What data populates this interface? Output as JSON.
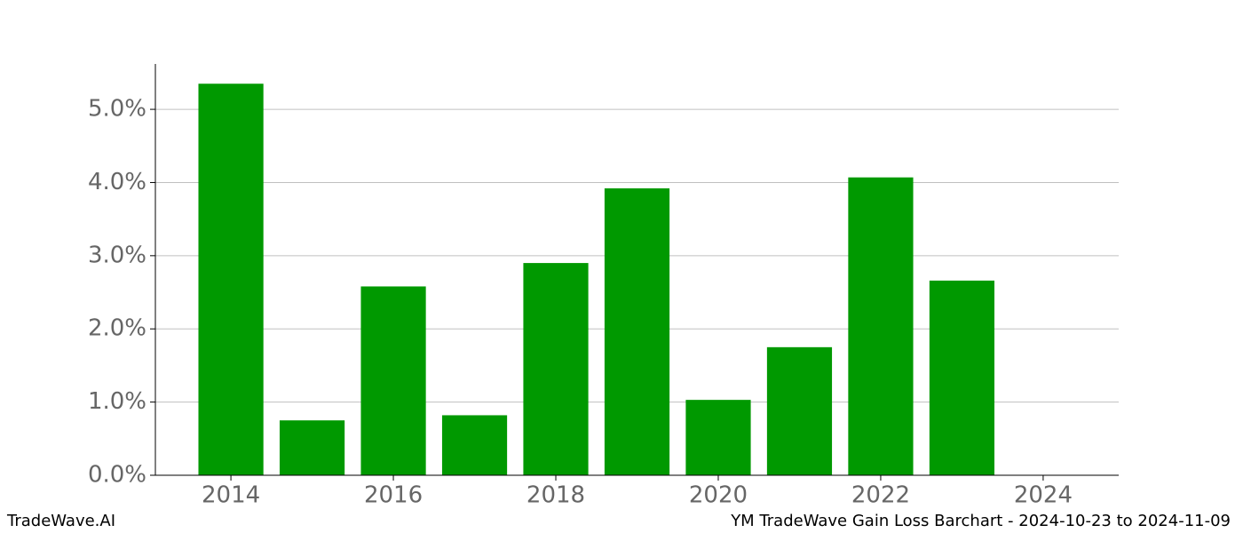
{
  "chart_data": {
    "type": "bar",
    "x": [
      2014,
      2015,
      2016,
      2017,
      2018,
      2019,
      2020,
      2021,
      2022,
      2023
    ],
    "values": [
      5.35,
      0.75,
      2.58,
      0.82,
      2.9,
      3.92,
      1.03,
      1.75,
      4.07,
      2.66
    ],
    "color": "#009900",
    "xlim": [
      2013.07,
      2024.93
    ],
    "xticks": [
      2014,
      2016,
      2018,
      2020,
      2022,
      2024
    ],
    "ylim": [
      0,
      5.62
    ],
    "yticks": [
      {
        "value": 0,
        "label": "0.0%"
      },
      {
        "value": 1,
        "label": "1.0%"
      },
      {
        "value": 2,
        "label": "2.0%"
      },
      {
        "value": 3,
        "label": "3.0%"
      },
      {
        "value": 4,
        "label": "4.0%"
      },
      {
        "value": 5,
        "label": "5.0%"
      }
    ],
    "grid": true,
    "footer_left": "TradeWave.AI",
    "footer_right": "YM TradeWave Gain Loss Barchart - 2024-10-23 to 2024-11-09"
  }
}
